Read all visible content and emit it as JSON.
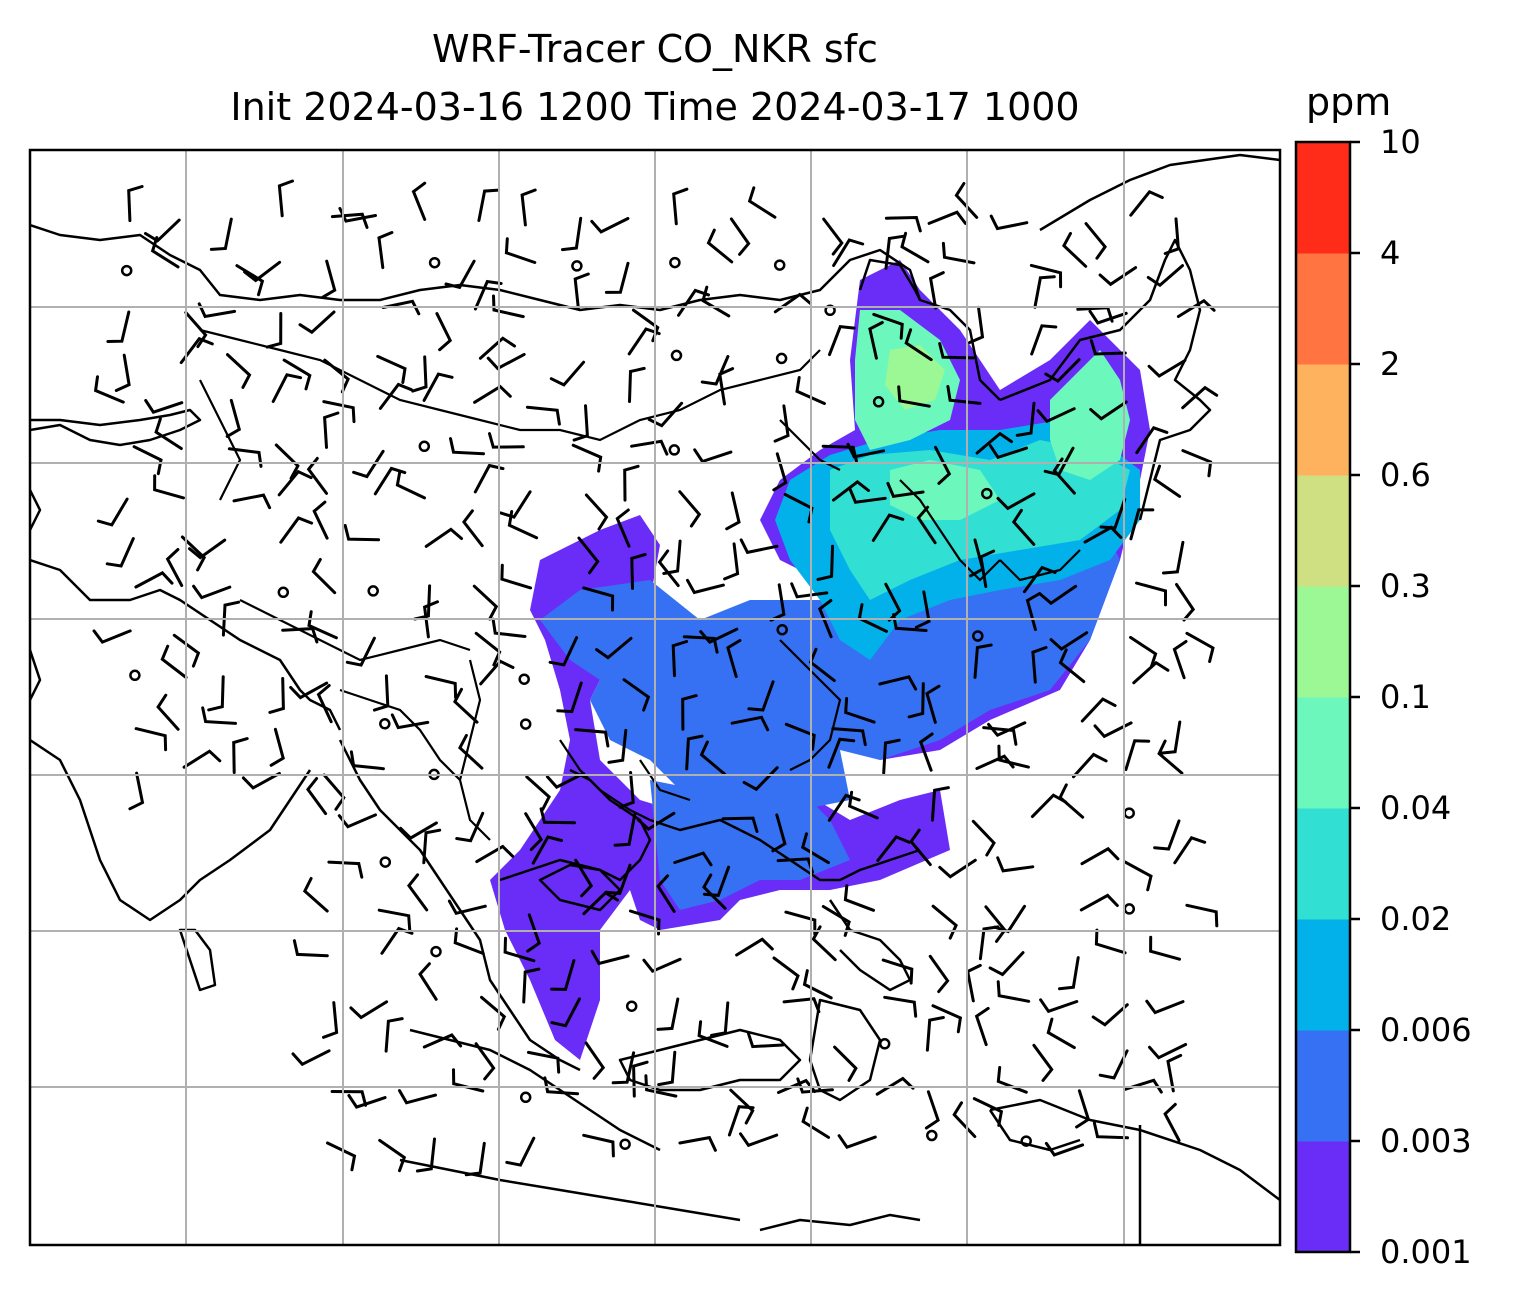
{
  "title": {
    "line1": "WRF-Tracer CO_NKR sfc",
    "line2": "Init 2024-03-16 1200 Time 2024-03-17 1000"
  },
  "colorbar": {
    "unit": "ppm",
    "levels": [
      "0.001",
      "0.003",
      "0.006",
      "0.02",
      "0.04",
      "0.1",
      "0.3",
      "0.6",
      "2",
      "4",
      "10"
    ],
    "colors": [
      "#6a2cf7",
      "#3571f2",
      "#03b1ea",
      "#31dfd3",
      "#6cf8bd",
      "#9cf795",
      "#cfe083",
      "#ffb25e",
      "#ff7440",
      "#ff2c1a"
    ]
  },
  "chart_data": {
    "type": "heatmap",
    "variable": "CO_NKR surface tracer concentration",
    "unit": "ppm",
    "contour_levels": [
      0.001,
      0.003,
      0.006,
      0.02,
      0.04,
      0.1,
      0.3,
      0.6,
      2,
      4,
      10
    ],
    "overlays": [
      "wind barbs",
      "coastlines",
      "country borders",
      "gridlines"
    ]
  }
}
